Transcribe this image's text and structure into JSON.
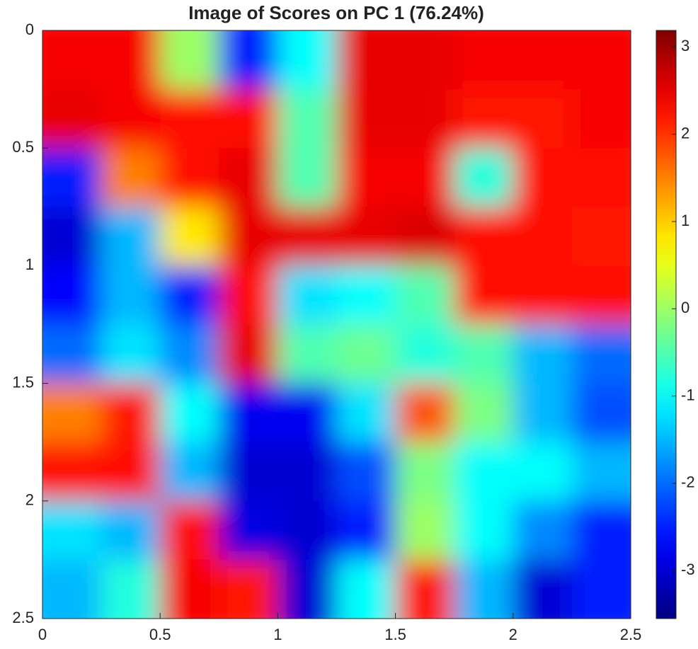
{
  "chart_data": {
    "type": "heatmap",
    "title": "Image of Scores on PC 1 (76.24%)",
    "xlim": [
      0,
      2.5
    ],
    "ylim": [
      0,
      2.5
    ],
    "y_direction": "reverse",
    "xticks": [
      0,
      0.5,
      1,
      1.5,
      2,
      2.5
    ],
    "yticks": [
      0,
      0.5,
      1,
      1.5,
      2,
      2.5
    ],
    "colormap": "jet",
    "clim": [
      -3.55,
      3.19
    ],
    "cticks": [
      -3,
      -2,
      -1,
      0,
      1,
      2,
      3
    ],
    "z": [
      [
        2.4,
        2.4,
        0,
        -2.5,
        -1,
        2.5,
        2.5,
        2.4,
        2.4,
        2.4
      ],
      [
        2.5,
        2.4,
        2.3,
        2.3,
        -0.5,
        2.5,
        2.5,
        2.2,
        2.2,
        2.4
      ],
      [
        -2.5,
        1.5,
        2.3,
        2.5,
        -0.5,
        2.4,
        2.4,
        -0.8,
        2.3,
        2.3
      ],
      [
        -3,
        -1.5,
        0.8,
        2.5,
        2.5,
        2.5,
        2.6,
        2.3,
        2.3,
        2.2
      ],
      [
        -2.7,
        -1.5,
        -2.5,
        2.3,
        -1.2,
        -1,
        -0.5,
        2.3,
        2.3,
        2.3
      ],
      [
        -2,
        -1.2,
        -1.8,
        2.5,
        -0.5,
        -0.3,
        -0.8,
        -0.5,
        -1.5,
        -2
      ],
      [
        1.5,
        2.2,
        -1,
        -2.8,
        -2.8,
        -1.2,
        1.8,
        -0.2,
        -1.5,
        -2.2
      ],
      [
        2.3,
        2.3,
        -1.5,
        -3,
        -3,
        -2.2,
        -0.2,
        -1,
        -1,
        -1.5
      ],
      [
        -1.2,
        -1.5,
        2.3,
        -2.9,
        -3,
        -2.5,
        0,
        -1,
        -1.8,
        -2.5
      ],
      [
        -1.5,
        -0.8,
        2.4,
        2.2,
        -3,
        -1,
        2.2,
        -1.5,
        -3,
        -2.5
      ]
    ]
  }
}
